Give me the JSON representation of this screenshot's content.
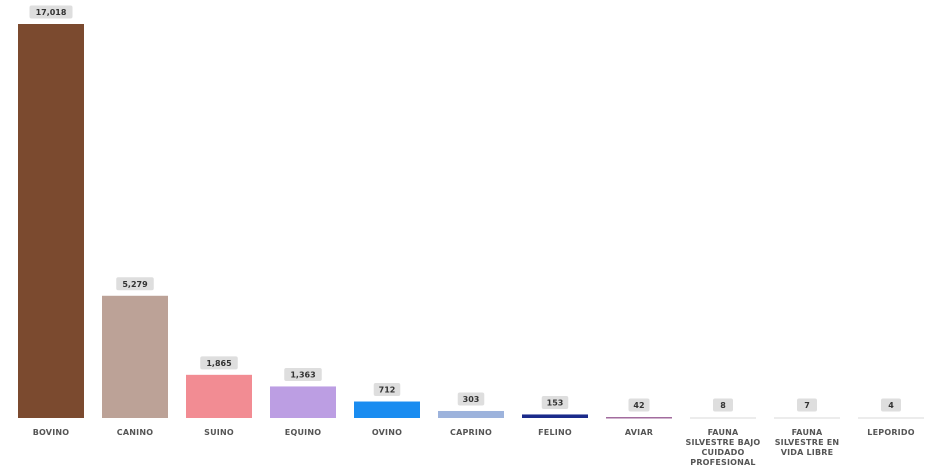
{
  "chart_data": {
    "type": "bar",
    "categories": [
      "BOVINO",
      "CANINO",
      "SUINO",
      "EQUINO",
      "OVINO",
      "CAPRINO",
      "FELINO",
      "AVIAR",
      "FAUNA SILVESTRE BAJO CUIDADO PROFESIONAL",
      "FAUNA SILVESTRE EN VIDA LIBRE",
      "LEPORIDO"
    ],
    "values": [
      17018,
      5279,
      1865,
      1363,
      712,
      303,
      153,
      42,
      8,
      7,
      4
    ],
    "value_labels": [
      "17,018",
      "5,279",
      "1,865",
      "1,363",
      "712",
      "303",
      "153",
      "42",
      "8",
      "7",
      "4"
    ],
    "colors": [
      "#7b4a2f",
      "#bca297",
      "#f28c93",
      "#bc9ee3",
      "#1a8cf0",
      "#9db3dc",
      "#1a2a8a",
      "#a0689c",
      "#d9d9d9",
      "#d9d9d9",
      "#d9d9d9"
    ]
  }
}
